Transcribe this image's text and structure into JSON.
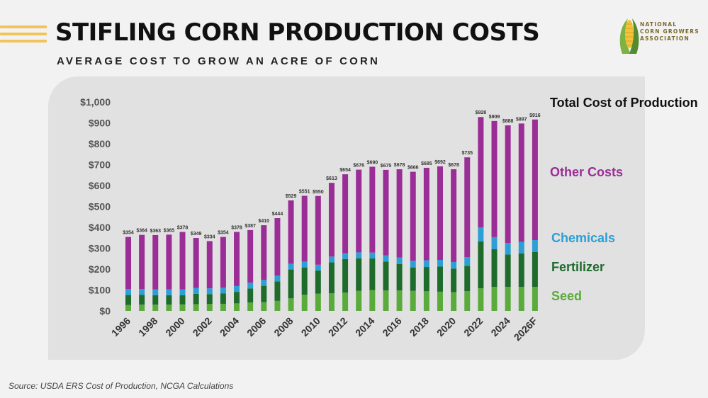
{
  "header": {
    "title": "STIFLING CORN PRODUCTION COSTS",
    "subtitle": "AVERAGE COST TO GROW AN ACRE OF CORN"
  },
  "logo": {
    "icon": "corn-icon",
    "lines": [
      "NATIONAL",
      "CORN GROWERS",
      "ASSOCIATION"
    ]
  },
  "source": "Source: USDA ERS Cost of Production, NCGA Calculations",
  "colors": {
    "seed": "#5aab3c",
    "fertilizer": "#1e6b2c",
    "chemicals": "#2b9fd6",
    "other": "#9b2d96",
    "accent": "#f1c35a"
  },
  "chart_data": {
    "type": "bar",
    "stacked": true,
    "categories": [
      "1996",
      "1997",
      "1998",
      "1999",
      "2000",
      "2001",
      "2002",
      "2003",
      "2004",
      "2005",
      "2006",
      "2007",
      "2008",
      "2009",
      "2010",
      "2011",
      "2012",
      "2013",
      "2014",
      "2015",
      "2016",
      "2017",
      "2018",
      "2019",
      "2020",
      "2021",
      "2022",
      "2023",
      "2024",
      "2025",
      "2026F"
    ],
    "tick_labels": [
      "1996",
      "",
      "1998",
      "",
      "2000",
      "",
      "2002",
      "",
      "2004",
      "",
      "2006",
      "",
      "2008",
      "",
      "2010",
      "",
      "2012",
      "",
      "2014",
      "",
      "2016",
      "",
      "2018",
      "",
      "2020",
      "",
      "2022",
      "",
      "2024",
      "",
      "2026F"
    ],
    "series": [
      {
        "name": "Seed",
        "values": [
          28,
          30,
          30,
          30,
          31,
          32,
          33,
          34,
          36,
          40,
          42,
          48,
          60,
          78,
          83,
          84,
          88,
          96,
          100,
          98,
          98,
          96,
          94,
          92,
          90,
          95,
          108,
          115,
          115,
          115,
          115
        ]
      },
      {
        "name": "Fertilizer",
        "values": [
          48,
          47,
          45,
          45,
          44,
          50,
          47,
          49,
          55,
          67,
          78,
          93,
          138,
          130,
          110,
          148,
          160,
          156,
          151,
          138,
          126,
          112,
          116,
          120,
          112,
          120,
          225,
          180,
          155,
          160,
          167
        ]
      },
      {
        "name": "Chemicals",
        "values": [
          28,
          28,
          28,
          28,
          28,
          28,
          28,
          28,
          28,
          28,
          28,
          28,
          28,
          28,
          28,
          28,
          28,
          28,
          28,
          30,
          32,
          32,
          32,
          32,
          32,
          42,
          67,
          58,
          55,
          55,
          57
        ]
      },
      {
        "name": "Other Costs",
        "values": [
          250,
          259,
          260,
          262,
          275,
          239,
          226,
          243,
          259,
          252,
          262,
          275,
          303,
          315,
          329,
          353,
          378,
          396,
          411,
          409,
          422,
          426,
          443,
          448,
          444,
          478,
          528,
          556,
          563,
          567,
          577
        ]
      }
    ],
    "totals": [
      354,
      364,
      363,
      365,
      378,
      349,
      334,
      354,
      378,
      387,
      410,
      444,
      529,
      551,
      550,
      613,
      654,
      676,
      690,
      675,
      678,
      666,
      685,
      692,
      678,
      735,
      928,
      909,
      888,
      897,
      916
    ],
    "total_labels": [
      "$354",
      "$364",
      "$363",
      "$365",
      "$378",
      "$349",
      "$334",
      "$354",
      "$378",
      "$387",
      "$410",
      "$444",
      "$529",
      "$551",
      "$550",
      "$613",
      "$654",
      "$676",
      "$690",
      "$675",
      "$678",
      "$666",
      "$685",
      "$692",
      "$678",
      "$735",
      "$928",
      "$909",
      "$888",
      "$897",
      "$916"
    ],
    "y_ticks": [
      0,
      100,
      200,
      300,
      400,
      500,
      600,
      700,
      800,
      900,
      1000
    ],
    "y_tick_labels": [
      "$0",
      "$100",
      "$200",
      "$300",
      "$400",
      "$500",
      "$600",
      "$700",
      "$800",
      "$900",
      "$1,000"
    ],
    "ylim": [
      0,
      1000
    ],
    "legend": {
      "total": "Total Cost of Production",
      "other": "Other Costs",
      "chemicals": "Chemicals",
      "fertilizer": "Fertilizer",
      "seed": "Seed"
    },
    "legend_position": "right",
    "grid": false
  }
}
